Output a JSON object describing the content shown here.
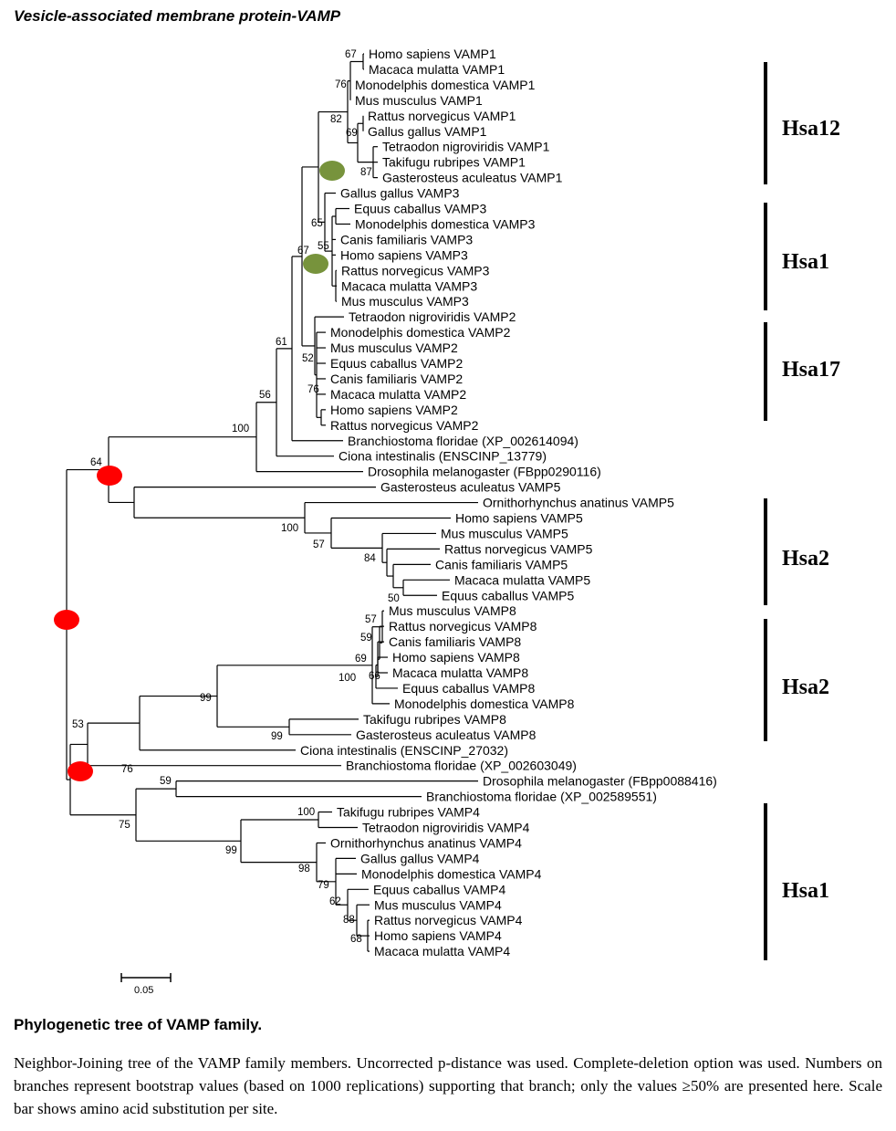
{
  "title": "Vesicle-associated membrane protein-VAMP",
  "leaves": [
    "Homo sapiens VAMP1",
    "Macaca mulatta VAMP1",
    "Monodelphis domestica VAMP1",
    "Mus musculus VAMP1",
    "Rattus norvegicus VAMP1",
    "Gallus gallus VAMP1",
    "Tetraodon nigroviridis VAMP1",
    "Takifugu rubripes VAMP1",
    "Gasterosteus aculeatus VAMP1",
    "Gallus gallus VAMP3",
    "Equus caballus VAMP3",
    "Monodelphis domestica VAMP3",
    "Canis familiaris VAMP3",
    "Homo sapiens VAMP3",
    "Rattus norvegicus VAMP3",
    "Macaca mulatta VAMP3",
    "Mus musculus VAMP3",
    "Tetraodon nigroviridis VAMP2",
    "Monodelphis domestica VAMP2",
    "Mus musculus VAMP2",
    "Equus caballus VAMP2",
    "Canis familiaris VAMP2",
    "Macaca mulatta VAMP2",
    "Homo sapiens VAMP2",
    "Rattus norvegicus VAMP2",
    "Branchiostoma floridae (XP_002614094)",
    "Ciona intestinalis (ENSCINP_13779)",
    "Drosophila melanogaster (FBpp0290116)",
    "Gasterosteus aculeatus VAMP5",
    "Ornithorhynchus anatinus VAMP5",
    "Homo sapiens VAMP5",
    "Mus musculus VAMP5",
    "Rattus norvegicus VAMP5",
    "Canis familiaris VAMP5",
    "Macaca mulatta VAMP5",
    "Equus caballus VAMP5",
    "Mus musculus VAMP8",
    "Rattus norvegicus VAMP8",
    "Canis familiaris VAMP8",
    "Homo sapiens VAMP8",
    "Macaca mulatta VAMP8",
    "Equus caballus VAMP8",
    "Monodelphis domestica VAMP8",
    "Takifugu rubripes VAMP8",
    "Gasterosteus aculeatus VAMP8",
    "Ciona intestinalis (ENSCINP_27032)",
    "Branchiostoma floridae (XP_002603049)",
    "Drosophila melanogaster (FBpp0088416)",
    "Branchiostoma floridae (XP_002589551)",
    "Takifugu rubripes VAMP4",
    "Tetraodon nigroviridis VAMP4",
    "Ornithorhynchus anatinus VAMP4",
    "Gallus gallus VAMP4",
    "Monodelphis domestica VAMP4",
    "Equus caballus VAMP4",
    "Mus musculus VAMP4",
    "Rattus norvegicus VAMP4",
    "Homo sapiens VAMP4",
    "Macaca mulatta VAMP4"
  ],
  "bootstrap": [
    "67",
    "76",
    "82",
    "69",
    "87",
    "65",
    "55",
    "67",
    "61",
    "52",
    "76",
    "56",
    "100",
    "64",
    "100",
    "57",
    "84",
    "50",
    "57",
    "59",
    "69",
    "66",
    "100",
    "99",
    "99",
    "53",
    "76",
    "59",
    "100",
    "75",
    "99",
    "98",
    "79",
    "62",
    "88",
    "68"
  ],
  "clades": [
    "Hsa12",
    "Hsa1",
    "Hsa17",
    "Hsa2",
    "Hsa2",
    "Hsa1"
  ],
  "scale_label": "0.05",
  "colors": {
    "green_marker": "#77933c",
    "red_marker": "#ff0000"
  },
  "caption_title": "Phylogenetic tree of VAMP family.",
  "caption_body": "Neighbor-Joining tree of the VAMP family members. Uncorrected p-distance was used. Complete-deletion option was used. Numbers on branches represent bootstrap values (based on 1000 replications) supporting that branch; only the values ≥50% are presented here. Scale bar shows amino acid substitution per site."
}
